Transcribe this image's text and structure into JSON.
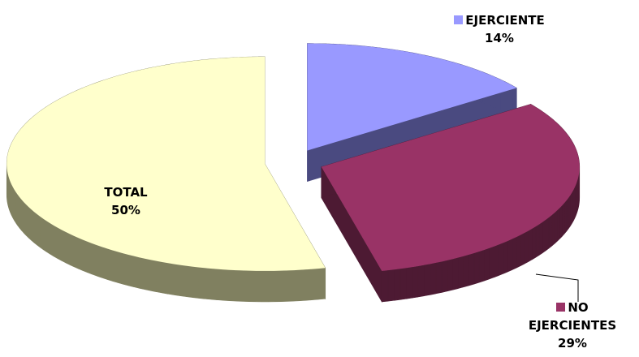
{
  "chart_data": {
    "type": "pie",
    "categories": [
      "EJERCIENTE",
      "NO EJERCIENTES",
      "TOTAL"
    ],
    "values": [
      14,
      29,
      50
    ],
    "value_labels": [
      "14%",
      "29%",
      "50%"
    ],
    "colors": [
      "#9999ff",
      "#993366",
      "#ffffcc"
    ],
    "side_colors": [
      "#4a4a80",
      "#4d1a33",
      "#808060"
    ]
  }
}
